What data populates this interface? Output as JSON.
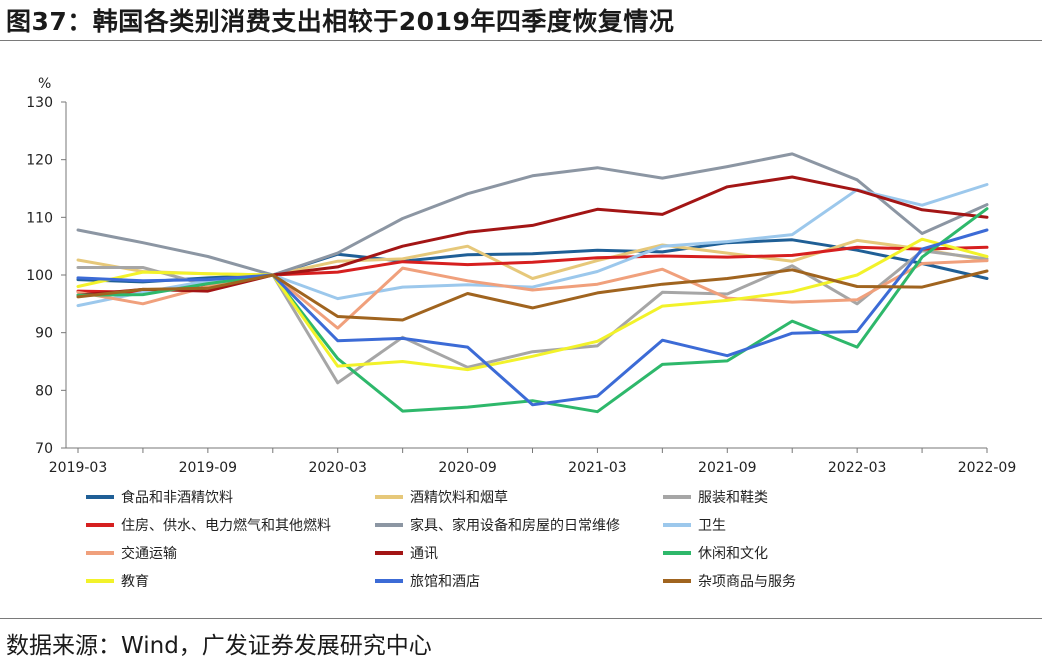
{
  "figure": {
    "title": "图37：韩国各类别消费支出相较于2019年四季度恢复情况",
    "source": "数据来源：Wind，广发证券发展研究中心"
  },
  "chart_data": {
    "type": "line",
    "y_unit": "%",
    "ylim": [
      70,
      130
    ],
    "yticks": [
      70,
      80,
      90,
      100,
      110,
      120,
      130
    ],
    "x_tick_labels": [
      "2019-03",
      "2019-09",
      "2020-03",
      "2020-09",
      "2021-03",
      "2021-09",
      "2022-03",
      "2022-09"
    ],
    "x": [
      "2019-03",
      "2019-06",
      "2019-09",
      "2019-12",
      "2020-03",
      "2020-06",
      "2020-09",
      "2020-12",
      "2021-03",
      "2021-06",
      "2021-09",
      "2021-12",
      "2022-03",
      "2022-06",
      "2022-09"
    ],
    "grid": false,
    "legend_position": "bottom",
    "series": [
      {
        "name": "食品和非酒精饮料",
        "color": "#1f5f96",
        "values": [
          99.2,
          98.8,
          99.5,
          100,
          103.6,
          102.4,
          103.5,
          103.7,
          104.3,
          104.0,
          105.6,
          106.1,
          104.3,
          102.0,
          99.4
        ]
      },
      {
        "name": "酒精饮料和烟草",
        "color": "#e6c87a",
        "values": [
          102.6,
          100.6,
          100.2,
          100,
          102.4,
          102.8,
          105.0,
          99.4,
          102.5,
          105.2,
          103.8,
          102.4,
          106.0,
          104.5,
          102.5
        ]
      },
      {
        "name": "服装和鞋类",
        "color": "#a6a6a6",
        "values": [
          101.3,
          101.3,
          98.2,
          100,
          81.3,
          89.2,
          84.0,
          86.7,
          87.7,
          97.0,
          96.7,
          101.6,
          95.0,
          104.2,
          102.8
        ]
      },
      {
        "name": "住房、供水、电力燃气和其他燃料",
        "color": "#d61f1f",
        "values": [
          97.2,
          97.0,
          98.4,
          100,
          100.5,
          102.3,
          101.8,
          102.2,
          103.0,
          103.3,
          103.1,
          103.4,
          104.8,
          104.5,
          104.8
        ]
      },
      {
        "name": "家具、家用设备和房屋的日常维修",
        "color": "#8c96a3",
        "values": [
          107.8,
          105.6,
          103.2,
          100,
          103.8,
          109.8,
          114.1,
          117.2,
          118.6,
          116.8,
          118.8,
          121.0,
          116.5,
          107.2,
          112.2
        ]
      },
      {
        "name": "卫生",
        "color": "#9cc8ec",
        "values": [
          94.7,
          97.0,
          99.0,
          100,
          95.9,
          97.9,
          98.3,
          97.9,
          100.6,
          105.0,
          105.8,
          107.0,
          114.8,
          112.1,
          115.7
        ]
      },
      {
        "name": "交通运输",
        "color": "#f0a07c",
        "values": [
          97.0,
          95.0,
          98.0,
          100,
          90.8,
          101.2,
          99.0,
          97.4,
          98.4,
          101.0,
          96.0,
          95.3,
          95.7,
          102.0,
          102.5
        ]
      },
      {
        "name": "通讯",
        "color": "#a31515",
        "values": [
          96.5,
          97.5,
          97.2,
          100,
          101.4,
          105.0,
          107.4,
          108.6,
          111.4,
          110.5,
          115.3,
          117.0,
          114.7,
          111.3,
          110.0
        ]
      },
      {
        "name": "休闲和文化",
        "color": "#2eb86b",
        "values": [
          96.5,
          96.6,
          98.5,
          100,
          85.5,
          76.4,
          77.1,
          78.2,
          76.3,
          84.5,
          85.1,
          92.0,
          87.5,
          103.1,
          111.5
        ]
      },
      {
        "name": "教育",
        "color": "#f2f22a",
        "values": [
          98.0,
          100.5,
          100.2,
          100,
          84.2,
          85.0,
          83.6,
          85.9,
          88.5,
          94.6,
          95.6,
          97.1,
          100.0,
          106.2,
          103.2
        ]
      },
      {
        "name": "旅馆和酒店",
        "color": "#3c6bd6",
        "values": [
          99.5,
          99.0,
          99.2,
          100,
          88.6,
          89.0,
          87.5,
          77.5,
          79.0,
          88.7,
          86.0,
          89.9,
          90.2,
          104.5,
          107.8
        ]
      },
      {
        "name": "杂项商品与服务",
        "color": "#a0641f",
        "values": [
          96.2,
          97.5,
          97.7,
          100,
          92.8,
          92.2,
          96.8,
          94.3,
          96.9,
          98.4,
          99.4,
          100.9,
          98.0,
          97.9,
          100.7
        ]
      }
    ]
  }
}
